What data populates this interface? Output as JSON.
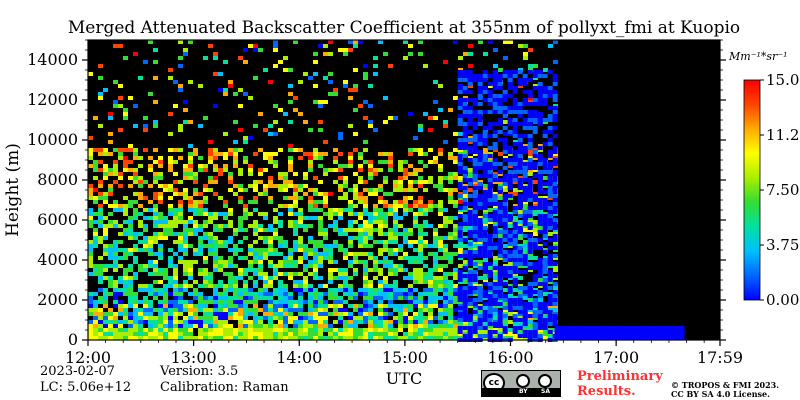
{
  "chart_data": {
    "type": "heatmap",
    "title": "Merged Attenuated Backscatter Coefficient at 355nm of pollyxt_fmi at Kuopio",
    "xlabel": "UTC",
    "ylabel": "Height (m)",
    "x_ticks": [
      "12:00",
      "13:00",
      "14:00",
      "15:00",
      "16:00",
      "17:00",
      "17:59"
    ],
    "x_range": [
      "12:00",
      "17:59"
    ],
    "y_ticks": [
      0,
      2000,
      4000,
      6000,
      8000,
      10000,
      12000,
      14000
    ],
    "ylim": [
      0,
      15000
    ],
    "colorbar": {
      "unit_label": "Mm⁻¹*sr⁻¹",
      "range": [
        0.0,
        15.0
      ],
      "ticks": [
        "15.00",
        "11.25",
        "7.50",
        "3.75",
        "0.00"
      ],
      "colors": [
        "#0000ff",
        "#0066ff",
        "#00bfff",
        "#00e0a0",
        "#33dd33",
        "#aaee00",
        "#ffff00",
        "#ffaa00",
        "#ff4400",
        "#ff0000"
      ]
    },
    "background_color": "#000000",
    "signal_end_time": "16:25"
  },
  "footer": {
    "date": "2023-02-07",
    "lc": "LC: 5.06e+12",
    "version": "Version: 3.5",
    "calibration": "Calibration: Raman",
    "preliminary": "Preliminary",
    "results": "Results.",
    "copyright_line1": "© TROPOS & FMI 2023.",
    "copyright_line2": "CC BY SA 4.0 License.",
    "cc_by": "BY",
    "cc_sa": "SA",
    "cc_mark": "cc"
  }
}
